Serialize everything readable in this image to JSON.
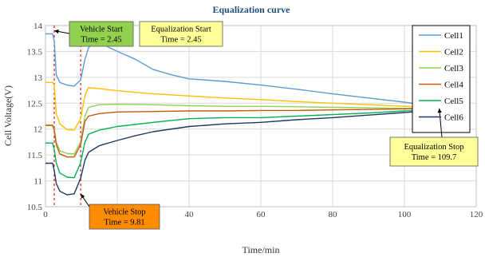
{
  "chart_data": {
    "type": "line",
    "title": "Equalization curve",
    "xlabel": "Time/min",
    "ylabel": "Cell Voltage(V)",
    "xlim": [
      0,
      120
    ],
    "ylim": [
      10.5,
      14
    ],
    "x_ticks": [
      "0",
      "20",
      "40",
      "60",
      "80",
      "100",
      "120"
    ],
    "y_ticks": [
      "10.5",
      "11",
      "11.5",
      "12",
      "12.5",
      "13",
      "13.5",
      "14"
    ],
    "grid": true,
    "legend_position": "top-right",
    "series": [
      {
        "name": "Cell1",
        "color": "#5b9bd5",
        "points": [
          [
            0,
            13.84
          ],
          [
            2,
            13.84
          ],
          [
            2.45,
            13.7
          ],
          [
            3,
            13.05
          ],
          [
            4,
            12.9
          ],
          [
            6,
            12.85
          ],
          [
            8,
            12.83
          ],
          [
            9.81,
            12.95
          ],
          [
            11,
            13.35
          ],
          [
            12,
            13.57
          ],
          [
            13,
            13.64
          ],
          [
            15,
            13.66
          ],
          [
            17,
            13.6
          ],
          [
            20,
            13.5
          ],
          [
            25,
            13.35
          ],
          [
            30,
            13.15
          ],
          [
            35,
            13.05
          ],
          [
            40,
            12.97
          ],
          [
            50,
            12.92
          ],
          [
            60,
            12.85
          ],
          [
            70,
            12.77
          ],
          [
            80,
            12.68
          ],
          [
            90,
            12.6
          ],
          [
            100,
            12.52
          ],
          [
            105,
            12.47
          ],
          [
            109.7,
            12.43
          ]
        ]
      },
      {
        "name": "Cell2",
        "color": "#ffc000",
        "points": [
          [
            0,
            12.9
          ],
          [
            2,
            12.9
          ],
          [
            2.45,
            12.85
          ],
          [
            3,
            12.3
          ],
          [
            4,
            12.1
          ],
          [
            6,
            11.99
          ],
          [
            8,
            11.98
          ],
          [
            9.81,
            12.2
          ],
          [
            11,
            12.65
          ],
          [
            12,
            12.8
          ],
          [
            15,
            12.78
          ],
          [
            20,
            12.74
          ],
          [
            30,
            12.68
          ],
          [
            40,
            12.64
          ],
          [
            50,
            12.6
          ],
          [
            60,
            12.57
          ],
          [
            70,
            12.53
          ],
          [
            80,
            12.5
          ],
          [
            90,
            12.47
          ],
          [
            100,
            12.44
          ],
          [
            109.7,
            12.41
          ]
        ]
      },
      {
        "name": "Cell3",
        "color": "#92d050",
        "points": [
          [
            0,
            12.08
          ],
          [
            2,
            12.08
          ],
          [
            2.45,
            12.0
          ],
          [
            3,
            11.75
          ],
          [
            4,
            11.58
          ],
          [
            6,
            11.53
          ],
          [
            8,
            11.52
          ],
          [
            9.81,
            11.75
          ],
          [
            11,
            12.25
          ],
          [
            12,
            12.42
          ],
          [
            15,
            12.47
          ],
          [
            20,
            12.48
          ],
          [
            30,
            12.47
          ],
          [
            40,
            12.45
          ],
          [
            50,
            12.44
          ],
          [
            60,
            12.44
          ],
          [
            70,
            12.43
          ],
          [
            80,
            12.42
          ],
          [
            90,
            12.41
          ],
          [
            100,
            12.4
          ],
          [
            109.7,
            12.4
          ]
        ]
      },
      {
        "name": "Cell4",
        "color": "#c55a11",
        "points": [
          [
            0,
            12.07
          ],
          [
            2,
            12.07
          ],
          [
            2.45,
            11.98
          ],
          [
            3,
            11.7
          ],
          [
            4,
            11.52
          ],
          [
            6,
            11.46
          ],
          [
            8,
            11.46
          ],
          [
            9.81,
            11.7
          ],
          [
            11,
            12.15
          ],
          [
            12,
            12.25
          ],
          [
            15,
            12.3
          ],
          [
            20,
            12.33
          ],
          [
            30,
            12.34
          ],
          [
            40,
            12.35
          ],
          [
            50,
            12.35
          ],
          [
            60,
            12.36
          ],
          [
            70,
            12.36
          ],
          [
            80,
            12.37
          ],
          [
            90,
            12.38
          ],
          [
            100,
            12.39
          ],
          [
            109.7,
            12.4
          ]
        ]
      },
      {
        "name": "Cell5",
        "color": "#00b050",
        "points": [
          [
            0,
            11.73
          ],
          [
            2,
            11.73
          ],
          [
            2.45,
            11.6
          ],
          [
            3,
            11.35
          ],
          [
            4,
            11.15
          ],
          [
            6,
            11.07
          ],
          [
            8,
            11.06
          ],
          [
            9.81,
            11.35
          ],
          [
            11,
            11.75
          ],
          [
            12,
            11.9
          ],
          [
            15,
            11.98
          ],
          [
            20,
            12.05
          ],
          [
            30,
            12.13
          ],
          [
            40,
            12.2
          ],
          [
            50,
            12.22
          ],
          [
            60,
            12.22
          ],
          [
            70,
            12.25
          ],
          [
            80,
            12.28
          ],
          [
            90,
            12.31
          ],
          [
            100,
            12.35
          ],
          [
            109.7,
            12.38
          ]
        ]
      },
      {
        "name": "Cell6",
        "color": "#1f3864",
        "points": [
          [
            0,
            11.34
          ],
          [
            2,
            11.34
          ],
          [
            2.45,
            11.2
          ],
          [
            3,
            10.95
          ],
          [
            4,
            10.8
          ],
          [
            6,
            10.73
          ],
          [
            8,
            10.75
          ],
          [
            9.81,
            11.05
          ],
          [
            11,
            11.4
          ],
          [
            12,
            11.55
          ],
          [
            15,
            11.68
          ],
          [
            20,
            11.78
          ],
          [
            25,
            11.87
          ],
          [
            30,
            11.95
          ],
          [
            40,
            12.05
          ],
          [
            50,
            12.1
          ],
          [
            60,
            12.13
          ],
          [
            70,
            12.18
          ],
          [
            80,
            12.22
          ],
          [
            90,
            12.27
          ],
          [
            100,
            12.32
          ],
          [
            109.7,
            12.37
          ]
        ]
      }
    ],
    "vertical_markers": [
      2.45,
      9.81
    ],
    "annotations": [
      {
        "text": "Vehicle Start",
        "text2": "Time = 2.45",
        "fill": "#92d050",
        "anchor_x": 2.45,
        "anchor_y": 13.9
      },
      {
        "text": "Equalization Start",
        "text2": "Time = 2.45",
        "fill": "#ffff99",
        "anchor_x": null,
        "anchor_y": null
      },
      {
        "text": "Vehicle Stop",
        "text2": "Time = 9.81",
        "fill": "#ff8c00",
        "anchor_x": 9.81,
        "anchor_y": 10.75
      },
      {
        "text": "Equalization Stop",
        "text2": "Time = 109.7",
        "fill": "#ffff99",
        "anchor_x": 109.7,
        "anchor_y": 12.4
      }
    ]
  }
}
